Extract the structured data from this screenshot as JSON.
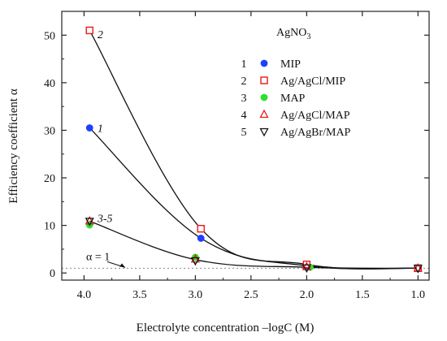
{
  "chart_data": {
    "type": "scatter",
    "title": "",
    "xlabel": "Electrolyte concentration –logC (M)",
    "ylabel": "Efficiency coefficient α",
    "xlim": [
      4.2,
      0.9
    ],
    "ylim": [
      -1.5,
      55
    ],
    "x_reversed": true,
    "x_ticks": [
      4.0,
      3.5,
      3.0,
      2.5,
      2.0,
      1.5,
      1.0
    ],
    "x_tick_labels": [
      "4.0",
      "3.5",
      "3.0",
      "2.5",
      "2.0",
      "1.5",
      "1.0"
    ],
    "y_ticks": [
      0,
      10,
      20,
      30,
      40,
      50
    ],
    "y_tick_labels": [
      "0",
      "10",
      "20",
      "30",
      "40",
      "50"
    ],
    "grid": false,
    "legend_position": "top-right",
    "legend_title": "AgNO",
    "legend_title_subscript": "3",
    "reference_line": {
      "y": 1,
      "label": "α = 1",
      "style": "dotted"
    },
    "series": [
      {
        "number": "1",
        "name": "MIP",
        "marker": "filled-circle",
        "color": "#1f3fff",
        "x": [
          3.95,
          2.95,
          2.0,
          1.0
        ],
        "y": [
          30.5,
          7.3,
          1.5,
          1.0
        ]
      },
      {
        "number": "2",
        "name": "Ag/AgCl/MIP",
        "marker": "open-square",
        "color": "#e8191c",
        "x": [
          3.95,
          2.95,
          2.0,
          1.0
        ],
        "y": [
          51.0,
          9.3,
          1.8,
          1.0
        ]
      },
      {
        "number": "3",
        "name": "MAP",
        "marker": "filled-circle",
        "color": "#2ee02e",
        "x": [
          3.95,
          3.0,
          1.97,
          1.0
        ],
        "y": [
          10.1,
          3.3,
          1.2,
          1.0
        ]
      },
      {
        "number": "4",
        "name": "Ag/AgCl/MAP",
        "marker": "open-triangle-up",
        "color": "#e8191c",
        "x": [
          3.95,
          3.0,
          2.0,
          1.0
        ],
        "y": [
          10.9,
          2.9,
          1.3,
          1.0
        ]
      },
      {
        "number": "5",
        "name": "Ag/AgBr/MAP",
        "marker": "open-triangle-down",
        "color": "#111111",
        "x": [
          3.95,
          3.0,
          2.0,
          1.0
        ],
        "y": [
          10.9,
          2.6,
          1.1,
          1.0
        ]
      }
    ],
    "curves": [
      {
        "label": "2",
        "x": [
          3.95,
          2.95,
          2.0,
          1.0
        ],
        "y": [
          51.0,
          9.3,
          1.8,
          1.0
        ]
      },
      {
        "label": "1",
        "x": [
          3.95,
          2.95,
          2.0,
          1.0
        ],
        "y": [
          30.5,
          7.3,
          1.5,
          1.0
        ]
      },
      {
        "label": "3-5",
        "x": [
          3.95,
          3.0,
          2.0,
          1.0
        ],
        "y": [
          10.9,
          2.8,
          1.2,
          1.0
        ]
      }
    ],
    "curve_label_positions": [
      {
        "label": "2",
        "x": 3.88,
        "y": 50.2
      },
      {
        "label": "1",
        "x": 3.88,
        "y": 30.5
      },
      {
        "label": "3-5",
        "x": 3.88,
        "y": 11.6
      }
    ]
  }
}
